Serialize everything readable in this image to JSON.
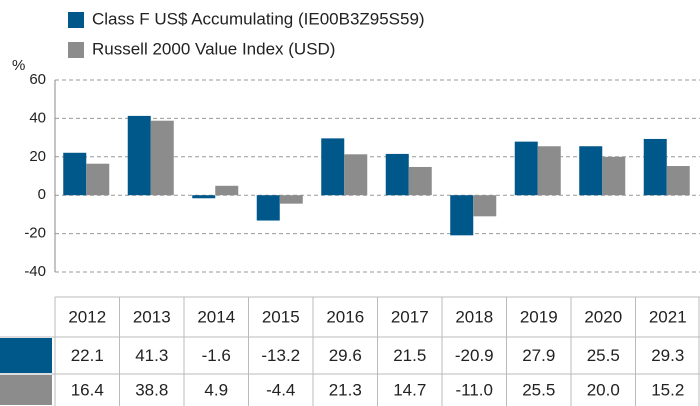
{
  "chart_data": {
    "type": "bar",
    "ylabel": "%",
    "categories": [
      "2012",
      "2013",
      "2014",
      "2015",
      "2016",
      "2017",
      "2018",
      "2019",
      "2020",
      "2021"
    ],
    "series": [
      {
        "name": "Class F US$ Accumulating (IE00B3Z95S59)",
        "color": "#00578a",
        "values": [
          22.1,
          41.3,
          -1.6,
          -13.2,
          29.6,
          21.5,
          -20.9,
          27.9,
          25.5,
          29.3
        ],
        "value_labels": [
          "22.1",
          "41.3",
          "-1.6",
          "-13.2",
          "29.6",
          "21.5",
          "-20.9",
          "27.9",
          "25.5",
          "29.3"
        ]
      },
      {
        "name": "Russell 2000 Value Index (USD)",
        "color": "#8c8c8c",
        "values": [
          16.4,
          38.8,
          4.9,
          -4.4,
          21.3,
          14.7,
          -11.0,
          25.5,
          20.0,
          15.2
        ],
        "value_labels": [
          "16.4",
          "38.8",
          "4.9",
          "-4.4",
          "21.3",
          "14.7",
          "-11.0",
          "25.5",
          "20.0",
          "15.2"
        ]
      }
    ],
    "ylim": [
      -40,
      60
    ],
    "yticks": [
      -40,
      -20,
      0,
      20,
      40,
      60
    ],
    "grid": true
  }
}
